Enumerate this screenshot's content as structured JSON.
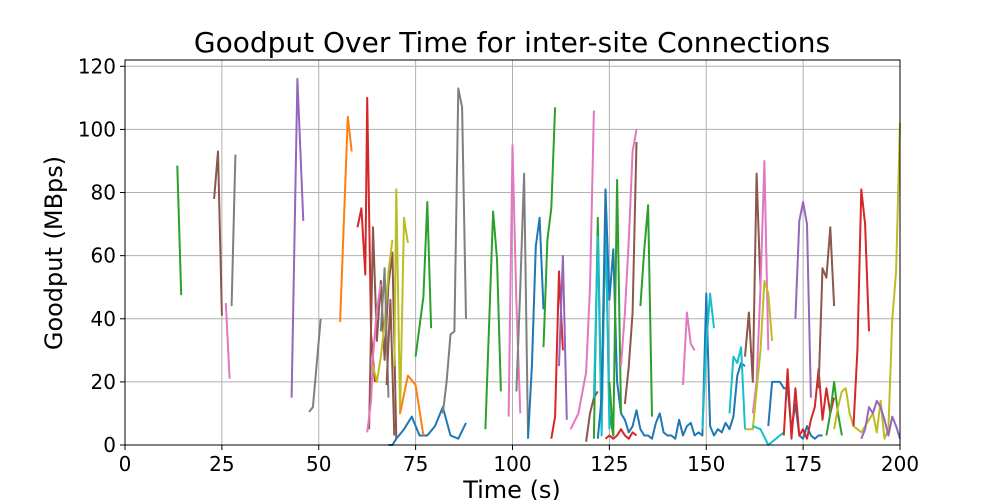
{
  "chart_data": {
    "type": "line",
    "title": "Goodput Over Time for inter-site Connections",
    "xlabel": "Time (s)",
    "ylabel": "Goodput (MBps)",
    "xlim": [
      0,
      200
    ],
    "ylim": [
      0,
      122
    ],
    "xticks": [
      "0",
      "25",
      "50",
      "75",
      "100",
      "125",
      "150",
      "175",
      "200"
    ],
    "yticks": [
      "0",
      "20",
      "40",
      "60",
      "80",
      "100",
      "120"
    ],
    "grid": true,
    "legend": "none",
    "series": [
      {
        "color": "#2ca02c",
        "x": [
          13.5,
          14.5
        ],
        "y": [
          88.5,
          47.5
        ]
      },
      {
        "color": "#8c564b",
        "x": [
          23,
          24,
          25
        ],
        "y": [
          78,
          93,
          41
        ]
      },
      {
        "color": "#e377c2",
        "x": [
          26,
          27
        ],
        "y": [
          45,
          21
        ]
      },
      {
        "color": "#7f7f7f",
        "x": [
          27.5,
          28.5
        ],
        "y": [
          44,
          92
        ]
      },
      {
        "color": "#9467bd",
        "x": [
          43,
          44.5,
          46
        ],
        "y": [
          15,
          116,
          71
        ]
      },
      {
        "color": "#7f7f7f",
        "x": [
          47.5,
          48.5,
          50.5
        ],
        "y": [
          10.5,
          12,
          40
        ]
      },
      {
        "color": "#ff7f0e",
        "x": [
          55.5,
          57.5,
          58.5
        ],
        "y": [
          39,
          104,
          93
        ]
      },
      {
        "color": "#d62728",
        "x": [
          60,
          61,
          62,
          62.5,
          63.5,
          64.5
        ],
        "y": [
          69,
          75,
          54,
          110,
          35,
          20
        ]
      },
      {
        "color": "#8c564b",
        "x": [
          63,
          64,
          65,
          66,
          67,
          68,
          69,
          70
        ],
        "y": [
          5,
          69,
          33,
          52,
          27,
          51,
          61,
          2
        ]
      },
      {
        "color": "#e377c2",
        "x": [
          62.5,
          63.5,
          64,
          65,
          66
        ],
        "y": [
          4,
          14,
          28,
          43,
          51
        ]
      },
      {
        "color": "#bcbd22",
        "x": [
          64,
          65,
          66,
          67,
          68,
          69
        ],
        "y": [
          25,
          20,
          28,
          38,
          55,
          65
        ]
      },
      {
        "color": "#bcbd22",
        "x": [
          69.5,
          70,
          71,
          72,
          73
        ],
        "y": [
          25,
          81,
          10,
          72,
          64
        ]
      },
      {
        "color": "#7f7f7f",
        "x": [
          66,
          67,
          68
        ],
        "y": [
          36,
          56,
          15
        ]
      },
      {
        "color": "#8c564b",
        "x": [
          67.5,
          68.5,
          69.5
        ],
        "y": [
          19,
          46,
          3
        ]
      },
      {
        "color": "#1f77b4",
        "x": [
          68,
          69,
          70,
          72,
          74,
          76,
          78,
          80,
          82,
          84,
          86,
          88
        ],
        "y": [
          0,
          0,
          2,
          5,
          9,
          3,
          3,
          6,
          12,
          3,
          2,
          7
        ]
      },
      {
        "color": "#ff7f0e",
        "x": [
          71,
          73,
          75,
          77
        ],
        "y": [
          10,
          22,
          19,
          3
        ]
      },
      {
        "color": "#2ca02c",
        "x": [
          75,
          77,
          78,
          79
        ],
        "y": [
          28,
          47,
          77,
          37
        ]
      },
      {
        "color": "#7f7f7f",
        "x": [
          82,
          83,
          84,
          85,
          86,
          87,
          88
        ],
        "y": [
          10,
          20,
          35,
          36,
          113,
          107,
          40
        ]
      },
      {
        "color": "#2ca02c",
        "x": [
          93,
          95,
          96,
          97
        ],
        "y": [
          5,
          74,
          59,
          17
        ]
      },
      {
        "color": "#e377c2",
        "x": [
          99,
          100,
          101,
          102
        ],
        "y": [
          9,
          95,
          45,
          10
        ]
      },
      {
        "color": "#7f7f7f",
        "x": [
          101,
          102,
          103,
          104
        ],
        "y": [
          17,
          50,
          86,
          3
        ]
      },
      {
        "color": "#1f77b4",
        "x": [
          104,
          105,
          106,
          107,
          108
        ],
        "y": [
          2,
          25,
          63,
          72,
          43
        ]
      },
      {
        "color": "#2ca02c",
        "x": [
          108,
          109,
          110,
          111
        ],
        "y": [
          31,
          65,
          75,
          107
        ]
      },
      {
        "color": "#d62728",
        "x": [
          110,
          111,
          112,
          113
        ],
        "y": [
          2,
          9,
          55,
          30
        ]
      },
      {
        "color": "#9467bd",
        "x": [
          112,
          113,
          114
        ],
        "y": [
          25,
          60,
          8
        ]
      },
      {
        "color": "#e377c2",
        "x": [
          115,
          117,
          119,
          120,
          121
        ],
        "y": [
          5,
          10,
          23,
          50,
          106
        ]
      },
      {
        "color": "#8c564b",
        "x": [
          119,
          120,
          121,
          122
        ],
        "y": [
          1,
          10,
          15,
          17
        ]
      },
      {
        "color": "#2ca02c",
        "x": [
          121,
          122,
          123,
          124,
          125,
          126
        ],
        "y": [
          2,
          72,
          5,
          73,
          10,
          3
        ]
      },
      {
        "color": "#17becf",
        "x": [
          121,
          122,
          123,
          124,
          125
        ],
        "y": [
          15,
          66,
          3,
          75,
          5
        ]
      },
      {
        "color": "#1f77b4",
        "x": [
          122,
          123,
          124,
          125,
          126,
          127,
          128,
          129,
          130,
          131,
          132,
          133,
          134,
          135,
          136,
          137,
          138,
          139,
          140,
          141,
          142,
          143,
          144,
          145,
          146,
          147,
          148,
          149,
          150,
          151,
          152,
          153,
          154,
          155,
          156,
          157,
          158,
          159,
          160
        ],
        "y": [
          2,
          15,
          81,
          46,
          62,
          20,
          10,
          8,
          4,
          6,
          11,
          5,
          3,
          3,
          2,
          7,
          10,
          4,
          3,
          3,
          2,
          8,
          3,
          6,
          7,
          3,
          4,
          3,
          48,
          6,
          3,
          5,
          4,
          7,
          5,
          9,
          22,
          26,
          25
        ]
      },
      {
        "color": "#d62728",
        "x": [
          124,
          125,
          126,
          127,
          128,
          129,
          130,
          131,
          132
        ],
        "y": [
          2,
          3,
          2,
          3,
          5,
          3,
          2,
          4,
          3
        ]
      },
      {
        "color": "#2ca02c",
        "x": [
          125,
          126,
          127,
          128
        ],
        "y": [
          20,
          3,
          84,
          10
        ]
      },
      {
        "color": "#e377c2",
        "x": [
          128,
          129,
          130,
          131,
          132
        ],
        "y": [
          25,
          42,
          65,
          93,
          100
        ]
      },
      {
        "color": "#8c564b",
        "x": [
          129,
          130,
          131,
          132
        ],
        "y": [
          13,
          25,
          42,
          96
        ]
      },
      {
        "color": "#2ca02c",
        "x": [
          133,
          134,
          135,
          136
        ],
        "y": [
          44,
          62,
          76,
          9
        ]
      },
      {
        "color": "#e377c2",
        "x": [
          144,
          145,
          146,
          147
        ],
        "y": [
          19,
          42,
          32,
          30
        ]
      },
      {
        "color": "#17becf",
        "x": [
          149,
          150,
          151,
          152
        ],
        "y": [
          5,
          32,
          48,
          37
        ]
      },
      {
        "color": "#17becf",
        "x": [
          156,
          157,
          158,
          159,
          160
        ],
        "y": [
          10,
          28,
          26,
          31,
          5
        ]
      },
      {
        "color": "#8c564b",
        "x": [
          160,
          161,
          162,
          163,
          164
        ],
        "y": [
          28,
          42,
          20,
          86,
          50
        ]
      },
      {
        "color": "#e377c2",
        "x": [
          162,
          163,
          164,
          165,
          166
        ],
        "y": [
          10,
          20,
          50,
          90,
          30
        ]
      },
      {
        "color": "#bcbd22",
        "x": [
          160,
          162,
          164,
          165,
          166,
          167
        ],
        "y": [
          5,
          5,
          30,
          52,
          48,
          33
        ]
      },
      {
        "color": "#17becf",
        "x": [
          162,
          164,
          166,
          168,
          170
        ],
        "y": [
          6,
          5,
          0,
          2,
          4
        ]
      },
      {
        "color": "#1f77b4",
        "x": [
          166,
          167,
          168,
          169,
          170,
          171,
          172,
          173,
          174,
          175,
          176,
          177,
          178,
          179,
          180
        ],
        "y": [
          6,
          20,
          20,
          20,
          18,
          18,
          5,
          13,
          3,
          2,
          6,
          3,
          2,
          3,
          3
        ]
      },
      {
        "color": "#d62728",
        "x": [
          170,
          171,
          172,
          173,
          174,
          175,
          176,
          177,
          178,
          179,
          180,
          181,
          182,
          183
        ],
        "y": [
          3,
          24,
          2,
          18,
          3,
          5,
          2,
          8,
          12,
          24,
          8,
          18,
          10,
          15
        ]
      },
      {
        "color": "#9467bd",
        "x": [
          173,
          174,
          175,
          176,
          177
        ],
        "y": [
          40,
          71,
          77,
          70,
          15
        ]
      },
      {
        "color": "#8c564b",
        "x": [
          179,
          180,
          181,
          182,
          183
        ],
        "y": [
          18,
          56,
          53,
          69,
          44
        ]
      },
      {
        "color": "#2ca02c",
        "x": [
          181,
          182,
          183,
          184,
          185
        ],
        "y": [
          3,
          10,
          20,
          10,
          3
        ]
      },
      {
        "color": "#bcbd22",
        "x": [
          183,
          184,
          185,
          186,
          187,
          188,
          189,
          190,
          191,
          192,
          193,
          194,
          195,
          196,
          197,
          198,
          199,
          200
        ],
        "y": [
          5,
          12,
          17,
          18,
          10,
          6,
          5,
          4,
          6,
          8,
          10,
          4,
          14,
          2,
          5,
          40,
          55,
          102
        ]
      },
      {
        "color": "#d62728",
        "x": [
          188,
          189,
          190,
          191,
          192
        ],
        "y": [
          6,
          30,
          81,
          70,
          36
        ]
      },
      {
        "color": "#9467bd",
        "x": [
          190,
          191,
          192,
          193,
          194,
          195,
          196,
          197,
          198,
          199,
          200
        ],
        "y": [
          2,
          5,
          12,
          10,
          14,
          12,
          8,
          3,
          9,
          6,
          2
        ]
      }
    ]
  }
}
